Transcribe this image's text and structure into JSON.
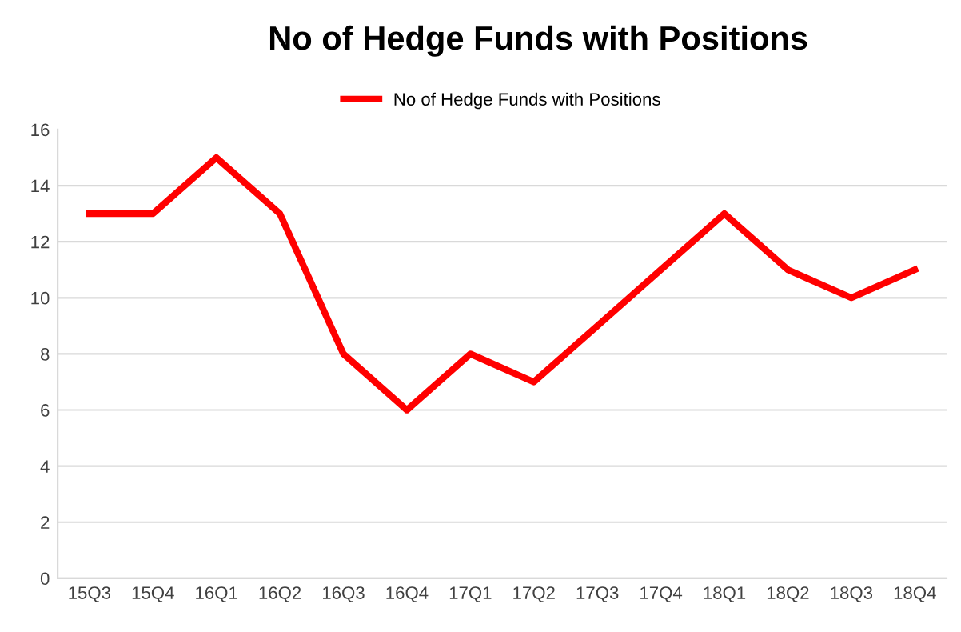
{
  "chart_data": {
    "type": "line",
    "title": "No of Hedge Funds with Positions",
    "categories": [
      "15Q3",
      "15Q4",
      "16Q1",
      "16Q2",
      "16Q3",
      "16Q4",
      "17Q1",
      "17Q2",
      "17Q3",
      "17Q4",
      "18Q1",
      "18Q2",
      "18Q3",
      "18Q4"
    ],
    "series": [
      {
        "name": "No of Hedge Funds with Positions",
        "color": "#ff0000",
        "values": [
          13,
          13,
          15,
          13,
          8,
          6,
          8,
          7,
          9,
          11,
          13,
          11,
          10,
          11
        ]
      }
    ],
    "ylim": [
      0,
      16
    ],
    "yticks": [
      0,
      2,
      4,
      6,
      8,
      10,
      12,
      14,
      16
    ],
    "grid": "y",
    "legend": "top",
    "marker": "none",
    "line_style": "solid"
  }
}
